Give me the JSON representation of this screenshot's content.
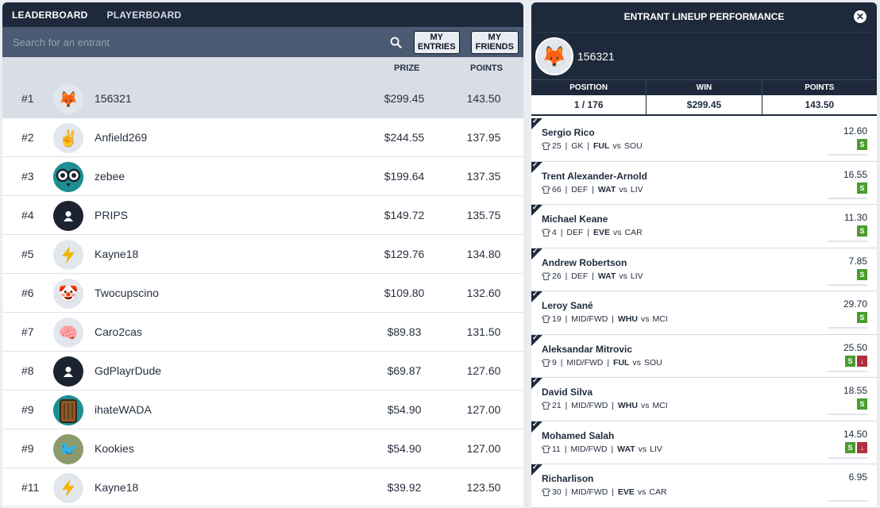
{
  "leaderboard": {
    "tabs": [
      {
        "label": "LEADERBOARD",
        "active": true
      },
      {
        "label": "PLAYERBOARD",
        "active": false
      }
    ],
    "search_placeholder": "Search for an entrant",
    "my_entries_label": "MY ENTRIES",
    "my_friends_label": "MY FRIENDS",
    "columns": {
      "prize": "PRIZE",
      "points": "POINTS"
    },
    "rows": [
      {
        "rank": "#1",
        "name": "156321",
        "prize": "$299.45",
        "points": "143.50",
        "avatar": "fox-avatar"
      },
      {
        "rank": "#2",
        "name": "Anfield269",
        "prize": "$244.55",
        "points": "137.95",
        "avatar": "peace-hand-avatar"
      },
      {
        "rank": "#3",
        "name": "zebee",
        "prize": "$199.64",
        "points": "137.35",
        "avatar": "owl-avatar"
      },
      {
        "rank": "#4",
        "name": "PRIPS",
        "prize": "$149.72",
        "points": "135.75",
        "avatar": "default-user-avatar"
      },
      {
        "rank": "#5",
        "name": "Kayne18",
        "prize": "$129.76",
        "points": "134.80",
        "avatar": "lightning-avatar"
      },
      {
        "rank": "#6",
        "name": "Twocupscino",
        "prize": "$109.80",
        "points": "132.60",
        "avatar": "clown-avatar"
      },
      {
        "rank": "#7",
        "name": "Caro2cas",
        "prize": "$89.83",
        "points": "131.50",
        "avatar": "brain-avatar"
      },
      {
        "rank": "#8",
        "name": "GdPlayrDude",
        "prize": "$69.87",
        "points": "127.60",
        "avatar": "default-user-avatar"
      },
      {
        "rank": "#9",
        "name": "ihateWADA",
        "prize": "$54.90",
        "points": "127.00",
        "avatar": "log-avatar"
      },
      {
        "rank": "#9",
        "name": "Kookies",
        "prize": "$54.90",
        "points": "127.00",
        "avatar": "bird-avatar"
      },
      {
        "rank": "#11",
        "name": "Kayne18",
        "prize": "$39.92",
        "points": "123.50",
        "avatar": "lightning-avatar"
      }
    ]
  },
  "performance": {
    "title": "ENTRANT LINEUP PERFORMANCE",
    "entrant_name": "156321",
    "stats_headers": {
      "position": "POSITION",
      "win": "WIN",
      "points": "POINTS"
    },
    "stats_values": {
      "position": "1 / 176",
      "win": "$299.45",
      "points": "143.50"
    },
    "players": [
      {
        "name": "Sergio Rico",
        "shirt": "25",
        "pos": "GK",
        "team": "FUL",
        "vs": "vs",
        "opp": "SOU",
        "points": "12.60",
        "badges": [
          "S"
        ],
        "progress": 0.18
      },
      {
        "name": "Trent Alexander-Arnold",
        "shirt": "66",
        "pos": "DEF",
        "team": "WAT",
        "vs": "vs",
        "opp": "LIV",
        "points": "16.55",
        "badges": [
          "S"
        ],
        "progress": 0.4
      },
      {
        "name": "Michael Keane",
        "shirt": "4",
        "pos": "DEF",
        "team": "EVE",
        "vs": "vs",
        "opp": "CAR",
        "points": "11.30",
        "badges": [
          "S"
        ],
        "progress": 0.15
      },
      {
        "name": "Andrew Robertson",
        "shirt": "26",
        "pos": "DEF",
        "team": "WAT",
        "vs": "vs",
        "opp": "LIV",
        "points": "7.85",
        "badges": [
          "S"
        ],
        "progress": 0.3
      },
      {
        "name": "Leroy Sané",
        "shirt": "19",
        "pos": "MID/FWD",
        "team": "WHU",
        "vs": "vs",
        "opp": "MCI",
        "points": "29.70",
        "badges": [
          "S"
        ],
        "progress": 0.3
      },
      {
        "name": "Aleksandar Mitrovic",
        "shirt": "9",
        "pos": "MID/FWD",
        "team": "FUL",
        "vs": "vs",
        "opp": "SOU",
        "points": "25.50",
        "badges": [
          "S",
          "↓"
        ],
        "progress": 0.2
      },
      {
        "name": "David Silva",
        "shirt": "21",
        "pos": "MID/FWD",
        "team": "WHU",
        "vs": "vs",
        "opp": "MCI",
        "points": "18.55",
        "badges": [
          "S"
        ],
        "progress": 0.3
      },
      {
        "name": "Mohamed Salah",
        "shirt": "11",
        "pos": "MID/FWD",
        "team": "WAT",
        "vs": "vs",
        "opp": "LIV",
        "points": "14.50",
        "badges": [
          "S",
          "↓"
        ],
        "progress": 0.45
      },
      {
        "name": "Richarlison",
        "shirt": "30",
        "pos": "MID/FWD",
        "team": "EVE",
        "vs": "vs",
        "opp": "CAR",
        "points": "6.95",
        "badges": [],
        "progress": 0.45
      }
    ]
  },
  "colors": {
    "navy": "#1e2a3b",
    "search_bg": "#4a5a72",
    "highlight_row": "#d9dde6",
    "sub_badge": "#4a9c2f",
    "down_badge": "#b03040",
    "progress": "#d6336c"
  }
}
